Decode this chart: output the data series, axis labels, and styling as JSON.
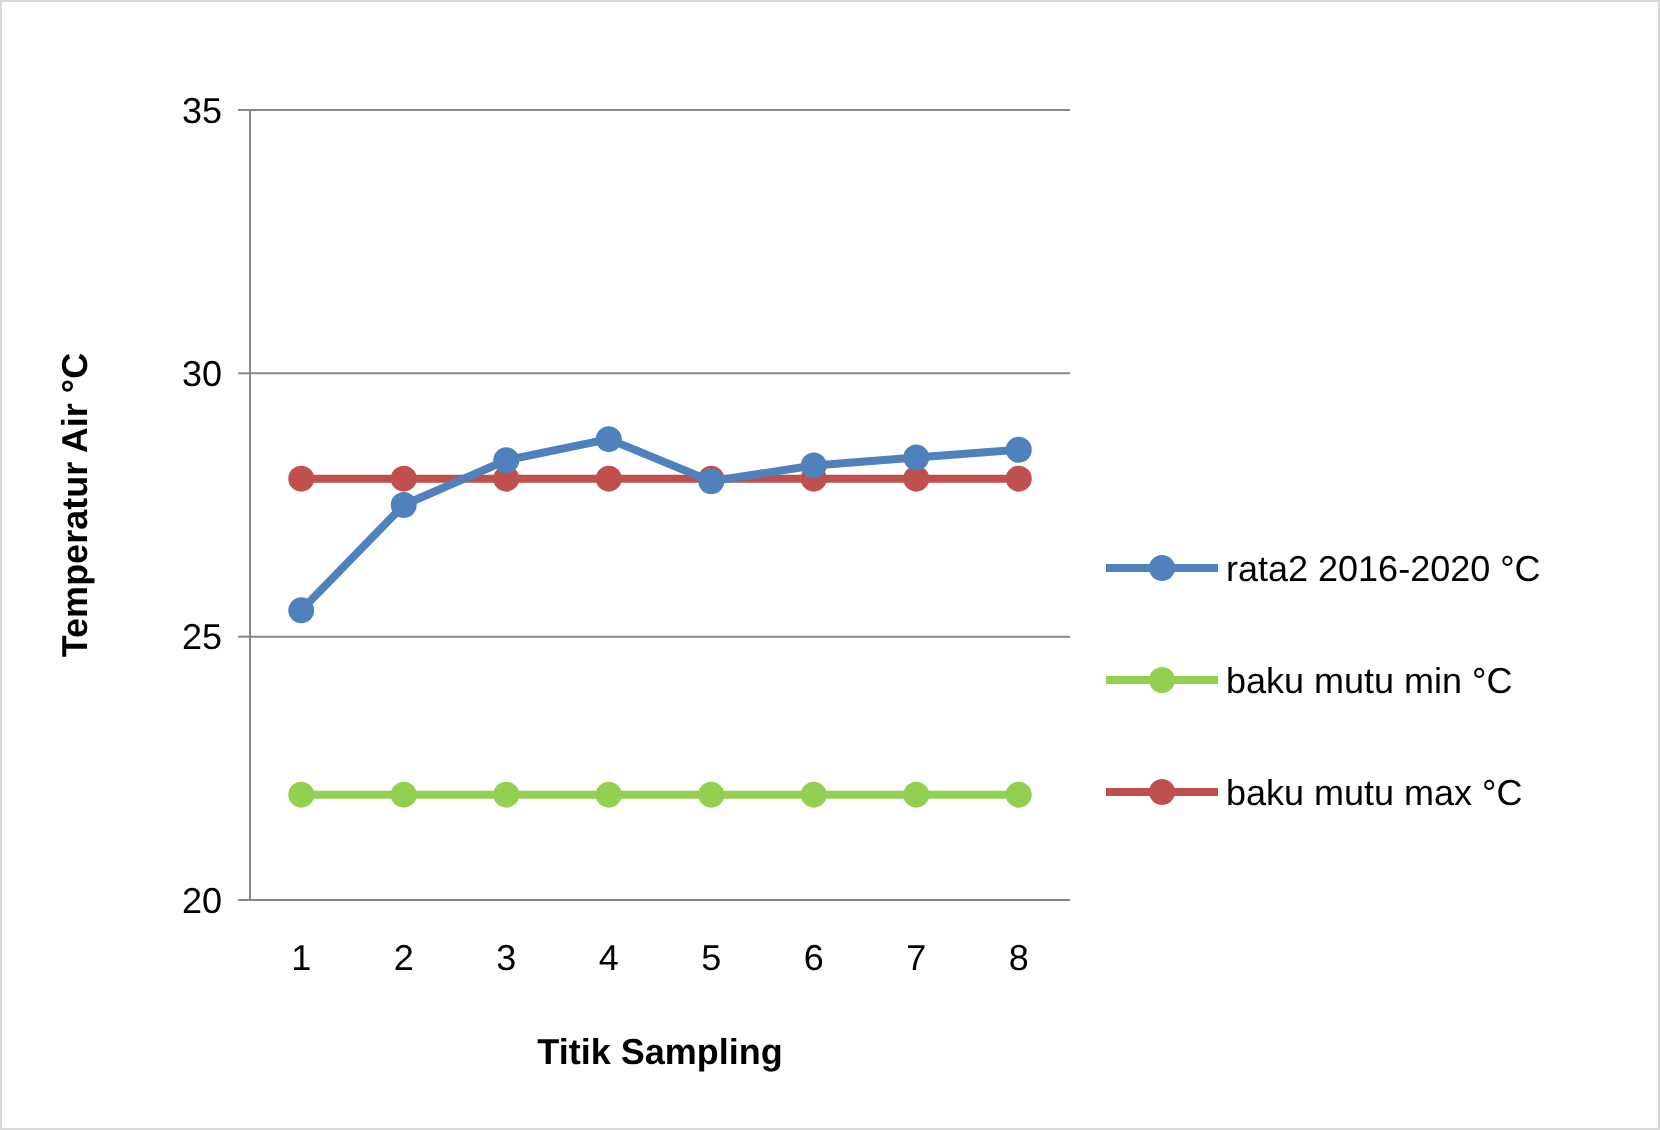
{
  "chart_data": {
    "type": "line",
    "xlabel": "Titik Sampling",
    "ylabel": "Temperatur Air °C",
    "categories": [
      "1",
      "2",
      "3",
      "4",
      "5",
      "6",
      "7",
      "8"
    ],
    "series": [
      {
        "name": "rata2 2016-2020 °C",
        "color": "#4f81bd",
        "values": [
          25.5,
          27.5,
          28.35,
          28.75,
          27.95,
          28.25,
          28.4,
          28.55
        ]
      },
      {
        "name": "baku mutu min °C",
        "color": "#92d050",
        "values": [
          22,
          22,
          22,
          22,
          22,
          22,
          22,
          22
        ]
      },
      {
        "name": "baku mutu max °C",
        "color": "#c0504d",
        "values": [
          28,
          28,
          28,
          28,
          28,
          28,
          28,
          28
        ]
      }
    ],
    "ylim": [
      20,
      35
    ],
    "yticks": [
      20,
      25,
      30,
      35
    ],
    "grid": "y",
    "legend": "right",
    "marker": "circle",
    "line_style": "solid"
  }
}
